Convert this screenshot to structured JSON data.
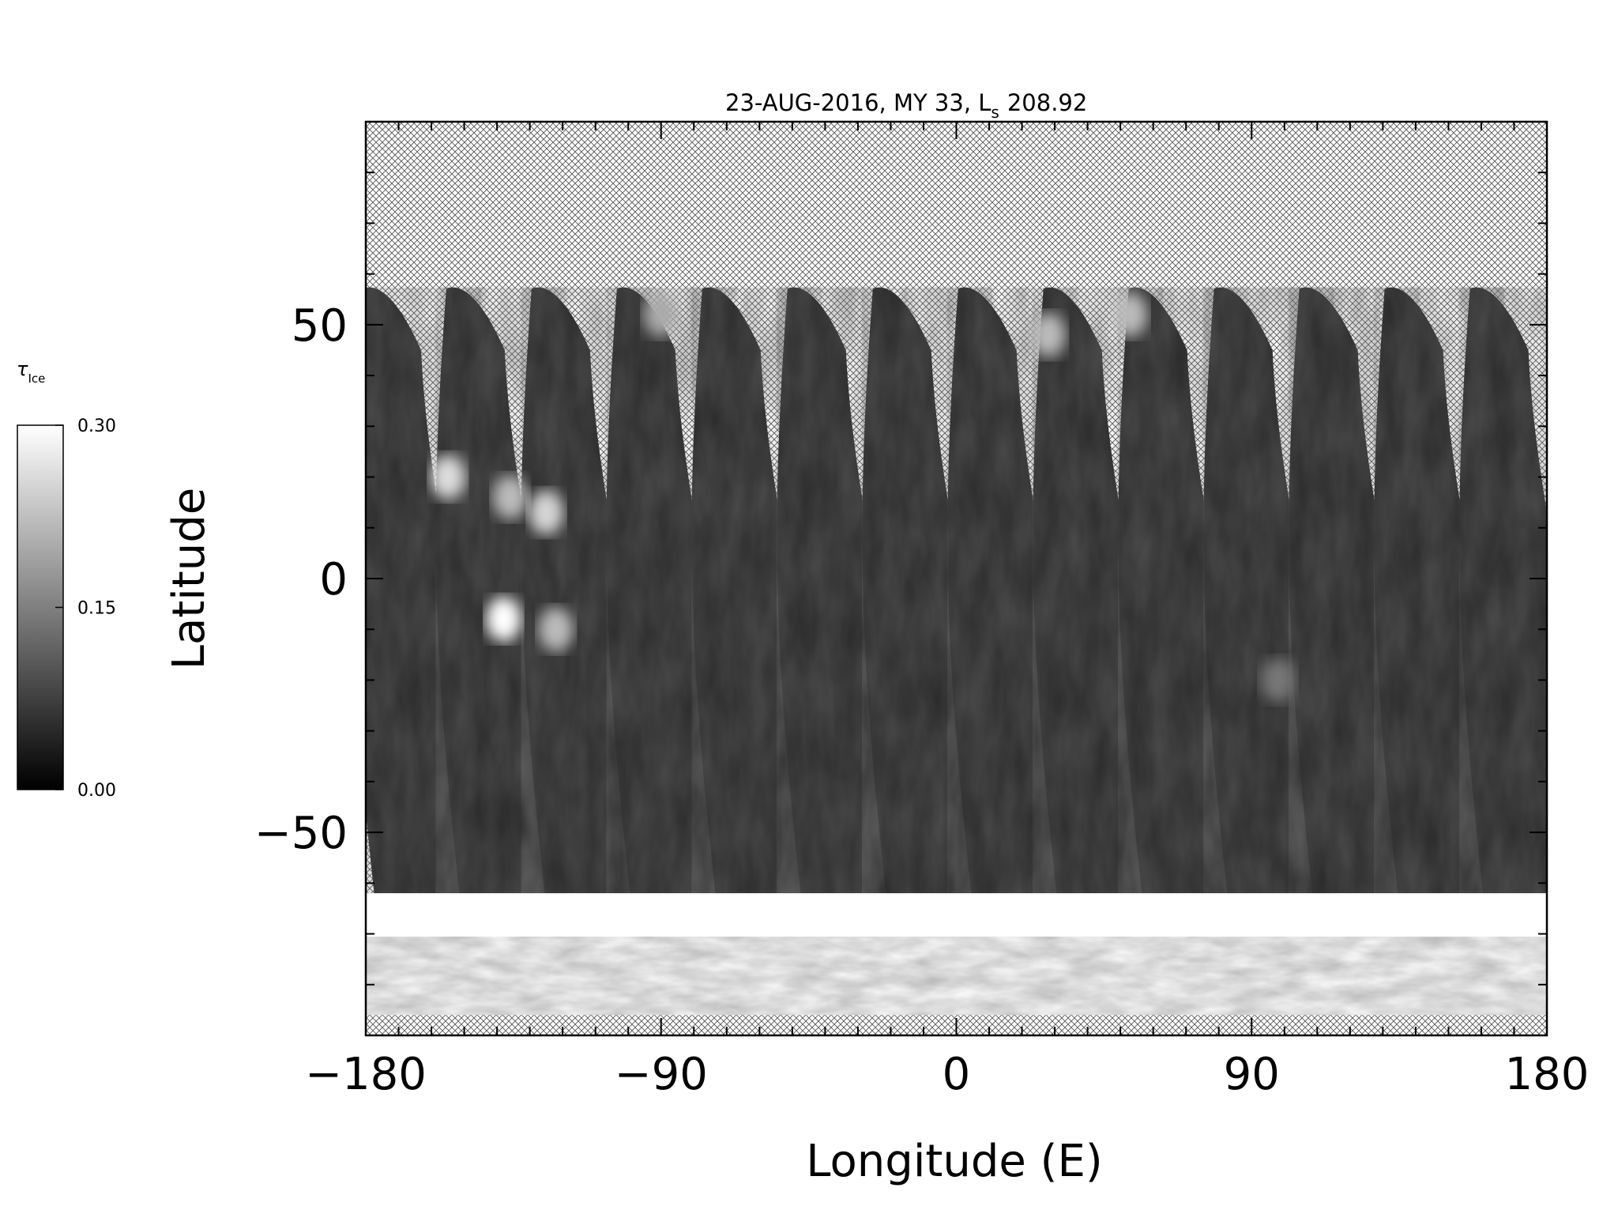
{
  "chart_data": {
    "type": "heatmap",
    "title": "23-AUG-2016, MY 33,  L",
    "title_sub": "s",
    "title_value": "208.92",
    "xlabel": "Longitude (E)",
    "ylabel": "Latitude",
    "xlim": [
      -180,
      180
    ],
    "ylim": [
      -90,
      90
    ],
    "xticks": [
      -180,
      -90,
      0,
      90,
      180
    ],
    "xtick_labels": [
      "−180",
      "−90",
      "0",
      "90",
      "180"
    ],
    "yticks": [
      -50,
      0,
      50
    ],
    "ytick_labels": [
      "−50",
      "0",
      "50"
    ],
    "x_minor_step": 10,
    "y_minor_step": 10,
    "colorbar": {
      "label": "τ",
      "label_sub": "Ice",
      "min": 0.0,
      "max": 0.3,
      "ticks": [
        0.0,
        0.15,
        0.3
      ],
      "tick_labels": [
        "0.00",
        "0.15",
        "0.30"
      ],
      "colors": [
        "#000000",
        "#ffffff"
      ]
    },
    "no_data_pattern": "crosshatch",
    "swath_count": 14,
    "swath_top_longitudes": [
      -180,
      -154.5,
      -128.5,
      -102.5,
      -76.5,
      -50.5,
      -24.5,
      1.5,
      27.5,
      53.5,
      79.5,
      105.5,
      131.5,
      157.5
    ],
    "swath_bottom_longitudes": [
      -163,
      -137,
      -111,
      -85,
      -59,
      -33,
      -7,
      19,
      45,
      71,
      97,
      123,
      149,
      175
    ],
    "swath_top_latitude": 59,
    "swath_bottom_latitude": -62,
    "south_polar_band": {
      "lat_max": -62,
      "lat_min": -86,
      "tau": 0.3
    },
    "bright_features": [
      {
        "lon": -155,
        "lat": 20,
        "tau": 0.26
      },
      {
        "lon": -136,
        "lat": 16,
        "tau": 0.22
      },
      {
        "lon": -138,
        "lat": -8,
        "tau": 0.3
      },
      {
        "lon": -125,
        "lat": 13,
        "tau": 0.25
      },
      {
        "lon": -122,
        "lat": -10,
        "tau": 0.22
      },
      {
        "lon": -90,
        "lat": 52,
        "tau": 0.2
      },
      {
        "lon": 28,
        "lat": 48,
        "tau": 0.22
      },
      {
        "lon": 53,
        "lat": 52,
        "tau": 0.22
      },
      {
        "lon": 98,
        "lat": -20,
        "tau": 0.14
      }
    ]
  }
}
